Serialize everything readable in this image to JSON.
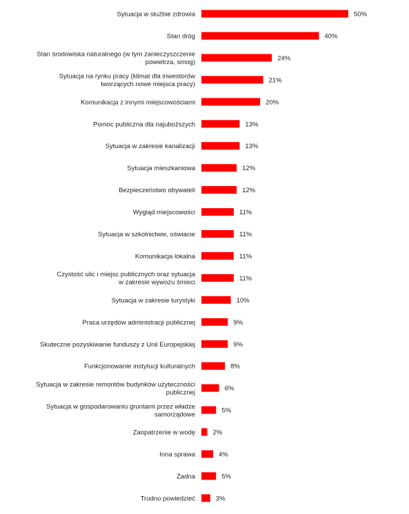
{
  "chart_data": {
    "type": "bar",
    "orientation": "horizontal",
    "title": "",
    "xlabel": "",
    "ylabel": "",
    "xlim": [
      0,
      50
    ],
    "grid": false,
    "legend": "none",
    "bar_color": "#ff0000",
    "value_suffix": "%",
    "categories": [
      [
        "Sytuacja w służbie zdrowia"
      ],
      [
        "Stan dróg"
      ],
      [
        "Stan środowiska naturalnego (w tym zanieczyszczenie",
        "powietrza, smog)"
      ],
      [
        "Sytuacja na rynku pracy (klimat dla inwestorów",
        "tworzących nowe miejsca pracy)"
      ],
      [
        "Komunikacja z innymi miejscowościami"
      ],
      [
        "Pomoc publiczna dla najuboższych"
      ],
      [
        "Sytuacja w zakresie kanalizacji"
      ],
      [
        "Sytuacja mieszkaniowa"
      ],
      [
        "Bezpieczeństwo obywateli"
      ],
      [
        "Wygląd miejscowości"
      ],
      [
        "Sytuacja w szkolnictwie, oświacie"
      ],
      [
        "Komunikacja lokalna"
      ],
      [
        "Czystość ulic i miejsc publicznych oraz sytuacja",
        "w zakresie wywozu śmieci"
      ],
      [
        "Sytuacja w zakresie turystyki"
      ],
      [
        "Praca urzędów administracji publicznej"
      ],
      [
        "Skuteczne pozyskiwanie funduszy z Unii Europejskiej"
      ],
      [
        "Funkcjonowanie instytucji kulturalnych"
      ],
      [
        "Sytuacja w zakresie remontów budynków użyteczności",
        "publicznej"
      ],
      [
        "Sytuacja w gospodarowaniu gruntami przez władze",
        "samorządowe"
      ],
      [
        "Zaopatrzenie w wodę"
      ],
      [
        "Inna sprawa"
      ],
      [
        "Żadna"
      ],
      [
        "Trudno powiedzieć"
      ]
    ],
    "values": [
      50,
      40,
      24,
      21,
      20,
      13,
      13,
      12,
      12,
      11,
      11,
      11,
      11,
      10,
      9,
      9,
      8,
      6,
      5,
      2,
      4,
      5,
      3
    ]
  }
}
